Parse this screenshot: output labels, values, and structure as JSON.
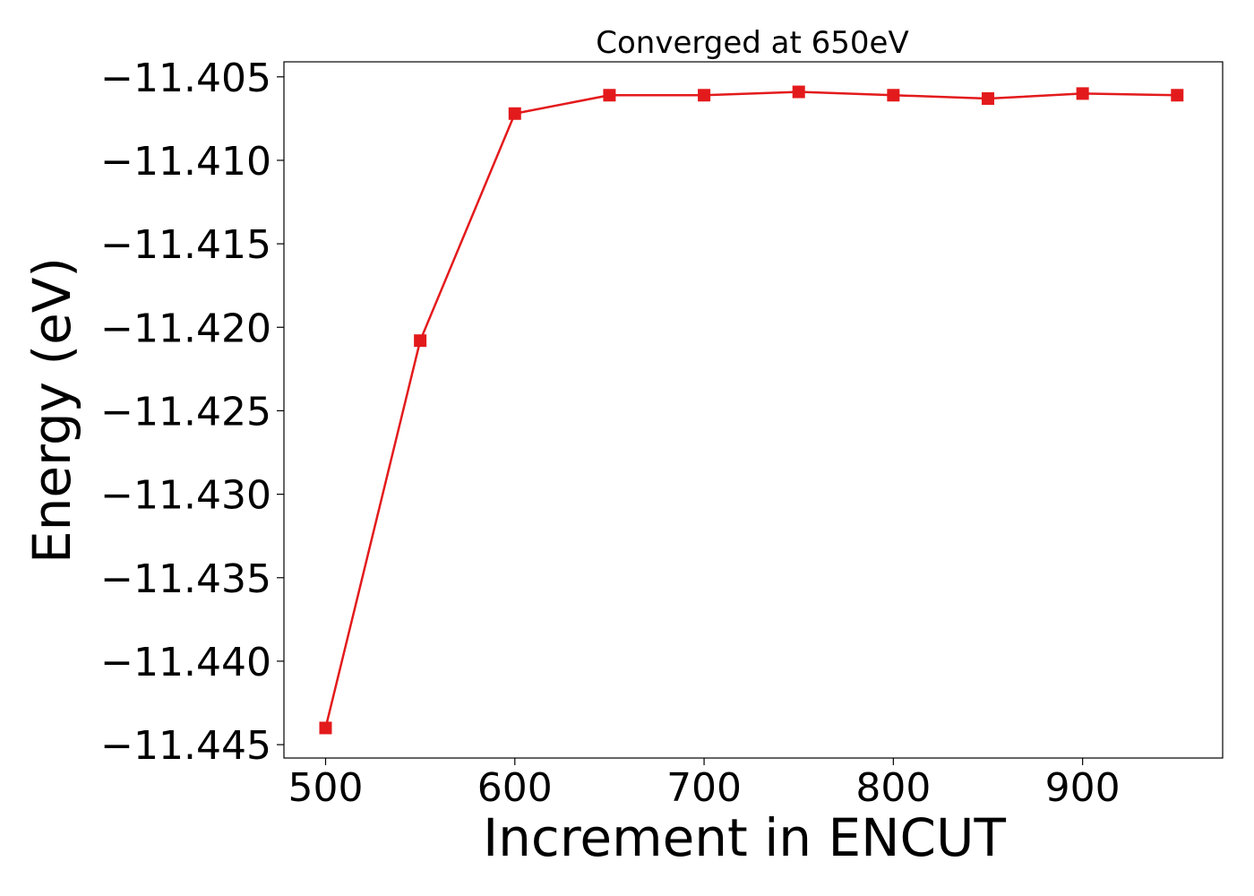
{
  "chart_data": {
    "type": "line",
    "title": "Converged at 650eV",
    "xlabel": "Increment in ENCUT",
    "ylabel": "Energy (eV)",
    "x": [
      500,
      550,
      600,
      650,
      700,
      750,
      800,
      850,
      900,
      950
    ],
    "series": [
      {
        "values": [
          -11.444,
          -11.4208,
          -11.4072,
          -11.4061,
          -11.4061,
          -11.4059,
          -11.4061,
          -11.4063,
          -11.406,
          -11.4061
        ],
        "color": "#e31a1c",
        "marker": "square"
      }
    ],
    "xlim": [
      478,
      974
    ],
    "ylim": [
      -11.4458,
      -11.4041
    ],
    "xticks": [
      500,
      600,
      700,
      800,
      900
    ],
    "xtick_labels": [
      "500",
      "600",
      "700",
      "800",
      "900"
    ],
    "yticks": [
      -11.445,
      -11.44,
      -11.435,
      -11.43,
      -11.425,
      -11.42,
      -11.415,
      -11.41,
      -11.405
    ],
    "ytick_labels": [
      "−11.445",
      "−11.440",
      "−11.435",
      "−11.430",
      "−11.425",
      "−11.420",
      "−11.415",
      "−11.410",
      "−11.405"
    ],
    "grid": false,
    "legend": "none"
  }
}
